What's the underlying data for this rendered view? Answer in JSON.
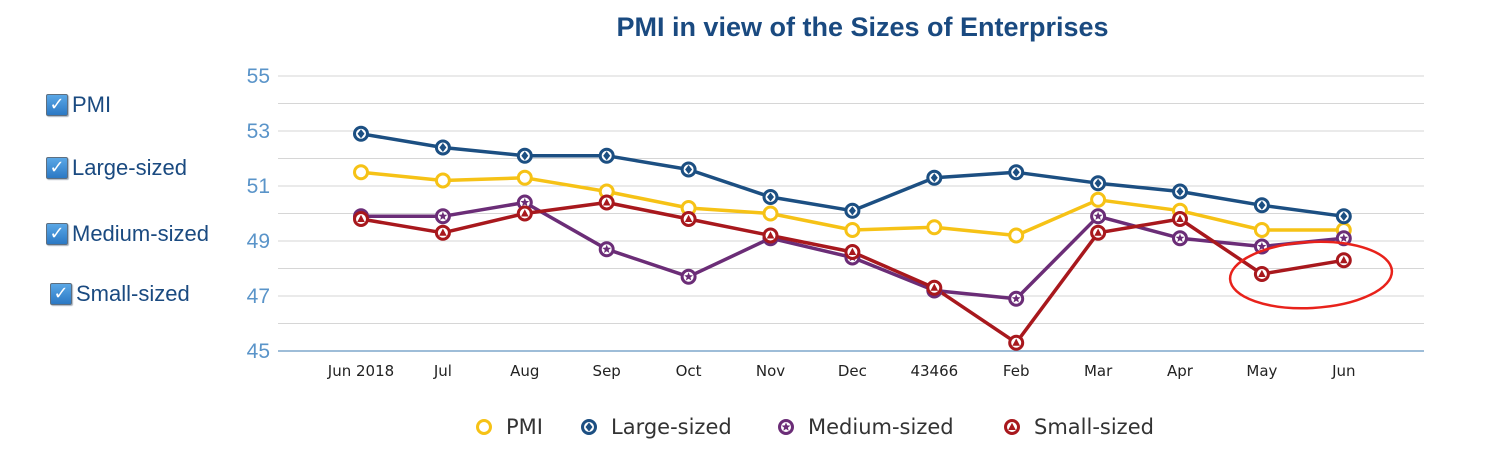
{
  "chart_data": {
    "type": "line",
    "title": "PMI in view of the Sizes of Enterprises",
    "categories": [
      "Jun 2018",
      "Jul",
      "Aug",
      "Sep",
      "Oct",
      "Nov",
      "Dec",
      "43466",
      "Feb",
      "Mar",
      "Apr",
      "May",
      "Jun"
    ],
    "yticks": [
      "45",
      "47",
      "49",
      "51",
      "53",
      "55"
    ],
    "ylim": [
      45,
      55
    ],
    "xlabel": "",
    "ylabel": "",
    "grid": true,
    "legend_position": "bottom",
    "series": [
      {
        "name": "PMI",
        "color": "#f6c216",
        "marker": "circle",
        "values": [
          51.5,
          51.2,
          51.3,
          50.8,
          50.2,
          50.0,
          49.4,
          49.5,
          49.2,
          50.5,
          50.1,
          49.4,
          49.4
        ]
      },
      {
        "name": "Large-sized",
        "color": "#1c4f82",
        "marker": "diamond",
        "values": [
          52.9,
          52.4,
          52.1,
          52.1,
          51.6,
          50.6,
          50.1,
          51.3,
          51.5,
          51.1,
          50.8,
          50.3,
          49.9
        ]
      },
      {
        "name": "Medium-sized",
        "color": "#6b2d77",
        "marker": "star",
        "values": [
          49.9,
          49.9,
          50.4,
          48.7,
          47.7,
          49.1,
          48.4,
          47.2,
          46.9,
          49.9,
          49.1,
          48.8,
          49.1
        ]
      },
      {
        "name": "Small-sized",
        "color": "#a8181d",
        "marker": "triangle",
        "values": [
          49.8,
          49.3,
          50.0,
          50.4,
          49.8,
          49.2,
          48.6,
          47.3,
          45.3,
          49.3,
          49.8,
          47.8,
          48.3
        ]
      }
    ],
    "annotation": {
      "type": "ellipse",
      "color": "#e8221b",
      "around_categories": [
        "May",
        "Jun"
      ]
    }
  },
  "filters": [
    {
      "label": "PMI",
      "checked": true
    },
    {
      "label": "Large-sized",
      "checked": true
    },
    {
      "label": "Medium-sized",
      "checked": true
    },
    {
      "label": "Small-sized",
      "checked": true
    }
  ],
  "checkmark": "✓"
}
